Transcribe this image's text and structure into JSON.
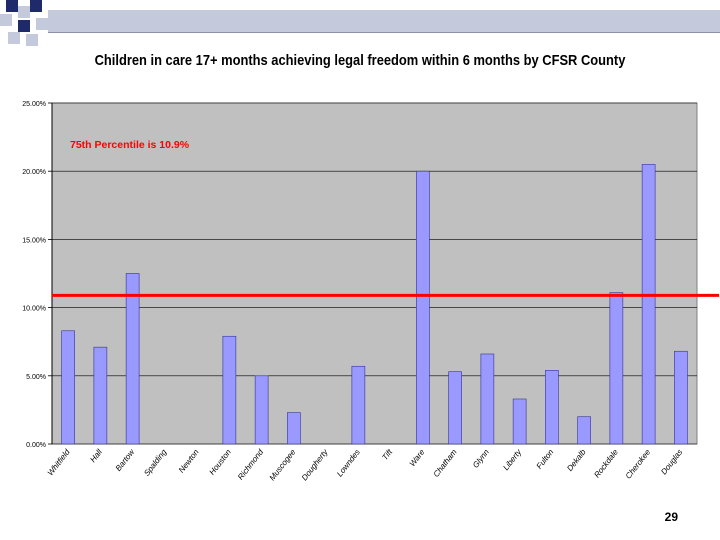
{
  "slide": {
    "page_number": "29"
  },
  "colors": {
    "deco_dark": "#1f2a6b",
    "deco_light": "#c4c9db",
    "plot_bg": "#c0c0c0",
    "bar_fill": "#9999ff",
    "bar_stroke": "#333399",
    "threshold_line": "#ff0000",
    "annotation": "#ff0000"
  },
  "chart_data": {
    "type": "bar",
    "title": "Children in care 17+ months achieving legal freedom within 6 months by CFSR County",
    "xlabel": "",
    "ylabel": "",
    "ylim": [
      0,
      25
    ],
    "y_ticks": [
      0,
      5,
      10,
      15,
      20,
      25
    ],
    "y_tick_labels": [
      "0.00%",
      "5.00%",
      "10.00%",
      "15.00%",
      "20.00%",
      "25.00%"
    ],
    "grid": true,
    "categories": [
      "Whitfield",
      "Hall",
      "Bartow",
      "Spalding",
      "Newton",
      "Houston",
      "Richmond",
      "Muscogee",
      "Dougherty",
      "Lowndes",
      "Tift",
      "Ware",
      "Chatham",
      "Glynn",
      "Liberty",
      "Fulton",
      "Dekalb",
      "Rockdale",
      "Cherokee",
      "Douglas"
    ],
    "values": [
      8.3,
      7.1,
      12.5,
      0,
      0,
      7.9,
      5.0,
      2.3,
      0,
      5.7,
      0,
      20.0,
      5.3,
      6.6,
      3.3,
      5.4,
      2.0,
      11.1,
      20.5,
      6.8
    ],
    "reference_line": {
      "value": 10.9,
      "label": "75th Percentile is 10.9%"
    }
  }
}
